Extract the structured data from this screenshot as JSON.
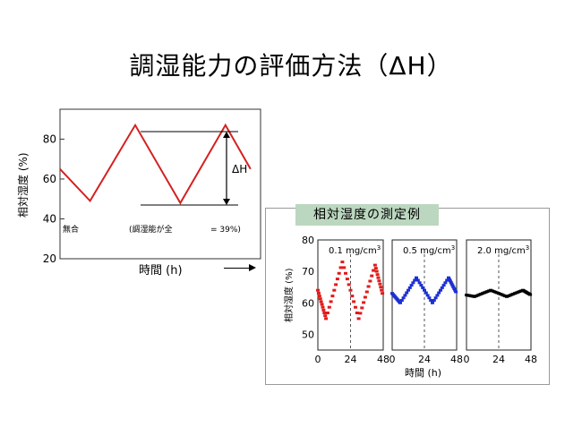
{
  "title": "調湿能力の評価方法（ΔH）",
  "main_chart": {
    "xlabel": "時間 (h)",
    "ylabel": "相対湿度 (%)",
    "yticks": [
      "20",
      "40",
      "60",
      "80"
    ],
    "delta_label": "ΔH",
    "annotation_left": "無合",
    "annotation_mid": "(調湿能が全",
    "annotation_right": "= 39%)",
    "line_color": "#d42020"
  },
  "example_panel": {
    "label": "相対湿度の測定例",
    "ylabel": "相対湿度 (%)",
    "xlabel": "時間 (h)",
    "yticks": [
      "50",
      "60",
      "70",
      "80"
    ],
    "xticks": [
      "0",
      "24",
      "48"
    ]
  },
  "chart_data": [
    {
      "type": "line",
      "xlabel": "時間 (h)",
      "ylabel": "相対湿度 (%)",
      "ylim": [
        20,
        95
      ],
      "series": [
        {
          "color": "#d42020",
          "x": [
            0,
            12,
            30,
            48,
            66,
            76
          ],
          "y": [
            65,
            49,
            87,
            48,
            87,
            65
          ]
        }
      ]
    },
    {
      "type": "scatter",
      "title": "0.1 mg/cm3",
      "xlim": [
        0,
        48
      ],
      "ylim": [
        45,
        80
      ],
      "series": [
        {
          "color": "#e11b1b",
          "x": [
            0,
            6,
            18,
            30,
            42,
            48
          ],
          "y": [
            64,
            55,
            73,
            55,
            72,
            62
          ]
        }
      ]
    },
    {
      "type": "scatter",
      "title": "0.5 mg/cm3",
      "xlim": [
        0,
        48
      ],
      "ylim": [
        45,
        80
      ],
      "series": [
        {
          "color": "#1c2fd6",
          "x": [
            0,
            6,
            18,
            30,
            42,
            48
          ],
          "y": [
            63,
            60,
            68,
            60,
            68,
            63
          ]
        }
      ]
    },
    {
      "type": "scatter",
      "title": "2.0 mg/cm3",
      "xlim": [
        0,
        48
      ],
      "ylim": [
        45,
        80
      ],
      "series": [
        {
          "color": "#000000",
          "x": [
            0,
            6,
            18,
            30,
            42,
            48
          ],
          "y": [
            62.5,
            62,
            64,
            62,
            64,
            62.5
          ]
        }
      ]
    }
  ]
}
